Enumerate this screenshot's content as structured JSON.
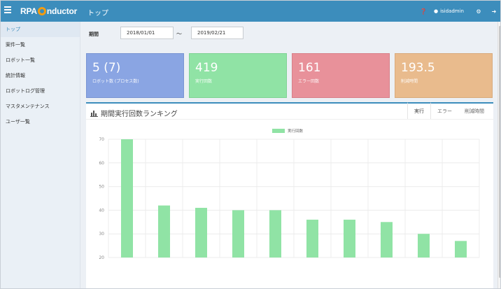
{
  "header": {
    "brand": "RPA Conductor",
    "brand_prefix": "RPA",
    "brand_suffix": "nductor",
    "page_title": "トップ",
    "user_name": "isidadmin",
    "icons": [
      "question-icon",
      "user-icon",
      "gear-icon",
      "logout-icon"
    ]
  },
  "sidebar": {
    "items": [
      {
        "label": "トップ",
        "active": true
      },
      {
        "label": "案件一覧"
      },
      {
        "label": "ロボット一覧"
      },
      {
        "label": "統計情報"
      },
      {
        "label": "ロボットログ管理"
      },
      {
        "label": "マスタメンテナンス"
      },
      {
        "label": "ユーザ一覧"
      }
    ]
  },
  "filter": {
    "period_label": "期間",
    "date_from": "2018/01/01",
    "separator": "～",
    "date_to": "2019/02/21"
  },
  "stats": [
    {
      "value": "5 (7)",
      "label": "ロボット数 (プロセス数)",
      "color": "#8aa5e3"
    },
    {
      "value": "419",
      "label": "実行回数",
      "color": "#90e3a5"
    },
    {
      "value": "161",
      "label": "エラー回数",
      "color": "#e8919a"
    },
    {
      "value": "193.5",
      "label": "削減時間",
      "color": "#e9bb8d"
    }
  ],
  "panel": {
    "title": "期間実行回数ランキング",
    "tabs": [
      {
        "label": "実行",
        "active": true
      },
      {
        "label": "エラー"
      },
      {
        "label": "削減時間"
      }
    ]
  },
  "chart_data": {
    "type": "bar",
    "series": [
      {
        "name": "実行回数",
        "color": "#90e3a5",
        "values": [
          70,
          42,
          41,
          40,
          40,
          36,
          36,
          35,
          30,
          27
        ]
      }
    ],
    "ylim": [
      20,
      70
    ],
    "yticks": [
      20,
      30,
      40,
      50,
      60,
      70
    ],
    "grid": true,
    "legend": "top-center"
  }
}
